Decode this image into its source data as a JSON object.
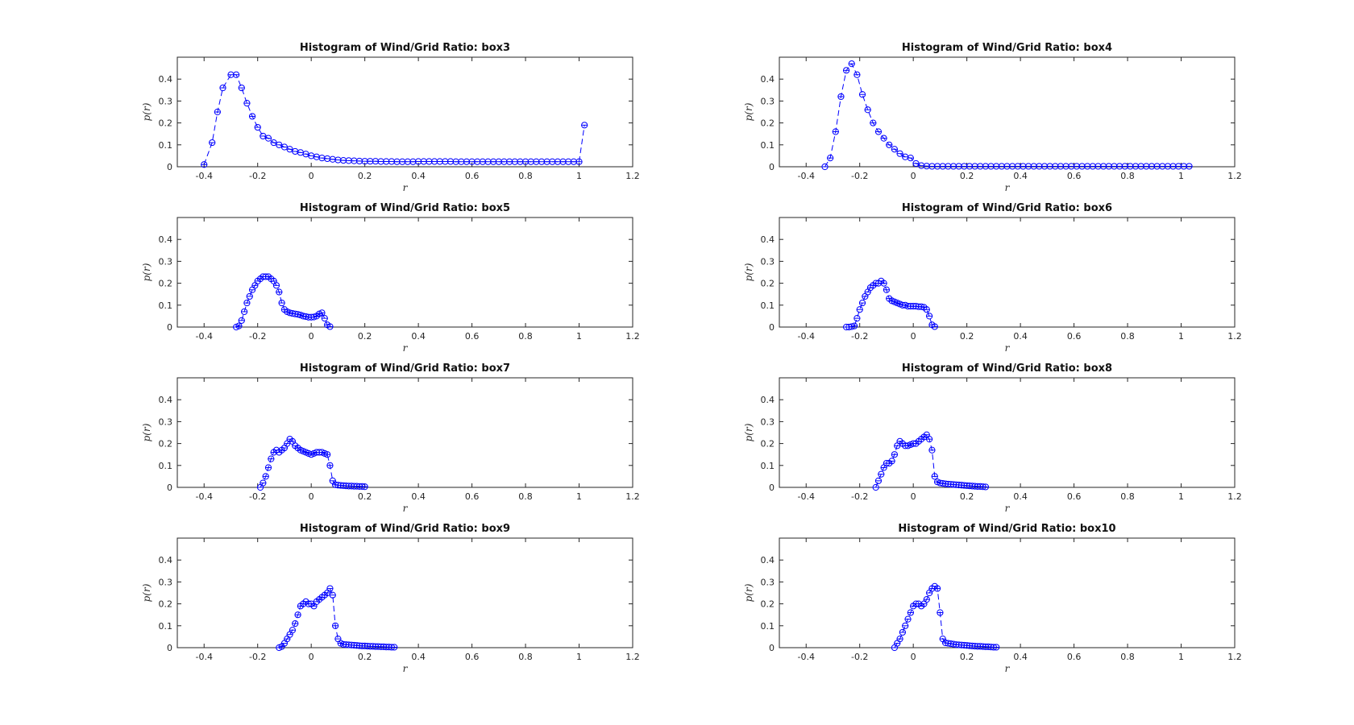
{
  "chart_data": [
    {
      "type": "line",
      "title": "Histogram of Wind/Grid Ratio: box3",
      "xlabel": "r",
      "ylabel": "p(r)",
      "xlim": [
        -0.5,
        1.2
      ],
      "ylim": [
        0,
        0.5
      ],
      "xticks": [
        "-0.4",
        "-0.2",
        "0",
        "0.2",
        "0.4",
        "0.6",
        "0.8",
        "1",
        "1.2"
      ],
      "yticks": [
        "0",
        "0.1",
        "0.2",
        "0.3",
        "0.4"
      ],
      "color": "#0000ff",
      "marker": "circle",
      "grid": false,
      "legend": "none",
      "series": [
        {
          "x": [
            -0.4,
            -0.37,
            -0.35,
            -0.33,
            -0.3,
            -0.28,
            -0.26,
            -0.24,
            -0.22,
            -0.2,
            -0.18,
            -0.16,
            -0.14,
            -0.12,
            -0.1,
            -0.08,
            -0.06,
            -0.04,
            -0.02,
            0.0,
            0.02,
            0.04,
            0.06,
            0.08,
            0.1,
            0.12,
            0.14,
            0.16,
            0.18,
            0.2,
            0.22,
            0.24,
            0.26,
            0.28,
            0.3,
            0.32,
            0.34,
            0.36,
            0.38,
            0.4,
            0.42,
            0.44,
            0.46,
            0.48,
            0.5,
            0.52,
            0.54,
            0.56,
            0.58,
            0.6,
            0.62,
            0.64,
            0.66,
            0.68,
            0.7,
            0.72,
            0.74,
            0.76,
            0.78,
            0.8,
            0.82,
            0.84,
            0.86,
            0.88,
            0.9,
            0.92,
            0.94,
            0.96,
            0.98,
            1.0,
            1.02
          ],
          "y": [
            0.01,
            0.11,
            0.25,
            0.36,
            0.42,
            0.42,
            0.36,
            0.29,
            0.23,
            0.18,
            0.14,
            0.13,
            0.11,
            0.1,
            0.09,
            0.08,
            0.07,
            0.065,
            0.058,
            0.05,
            0.045,
            0.04,
            0.037,
            0.034,
            0.031,
            0.029,
            0.028,
            0.027,
            0.026,
            0.025,
            0.025,
            0.025,
            0.024,
            0.024,
            0.024,
            0.023,
            0.023,
            0.023,
            0.023,
            0.024,
            0.024,
            0.024,
            0.024,
            0.024,
            0.024,
            0.024,
            0.023,
            0.023,
            0.023,
            0.023,
            0.023,
            0.023,
            0.023,
            0.023,
            0.023,
            0.023,
            0.023,
            0.023,
            0.023,
            0.023,
            0.023,
            0.023,
            0.023,
            0.023,
            0.023,
            0.023,
            0.023,
            0.023,
            0.023,
            0.023,
            0.19
          ]
        }
      ]
    },
    {
      "type": "line",
      "title": "Histogram of Wind/Grid Ratio: box4",
      "xlabel": "r",
      "ylabel": "p(r)",
      "xlim": [
        -0.5,
        1.2
      ],
      "ylim": [
        0,
        0.5
      ],
      "xticks": [
        "-0.4",
        "-0.2",
        "0",
        "0.2",
        "0.4",
        "0.6",
        "0.8",
        "1",
        "1.2"
      ],
      "yticks": [
        "0",
        "0.1",
        "0.2",
        "0.3",
        "0.4"
      ],
      "color": "#0000ff",
      "marker": "circle",
      "grid": false,
      "legend": "none",
      "series": [
        {
          "x": [
            -0.33,
            -0.31,
            -0.29,
            -0.27,
            -0.25,
            -0.23,
            -0.21,
            -0.19,
            -0.17,
            -0.15,
            -0.13,
            -0.11,
            -0.09,
            -0.07,
            -0.05,
            -0.03,
            -0.01,
            0.01,
            0.03,
            0.05,
            0.07,
            0.09,
            0.11,
            0.13,
            0.15,
            0.17,
            0.19,
            0.21,
            0.23,
            0.25,
            0.27,
            0.29,
            0.31,
            0.33,
            0.35,
            0.37,
            0.39,
            0.41,
            0.43,
            0.45,
            0.47,
            0.49,
            0.51,
            0.53,
            0.55,
            0.57,
            0.59,
            0.61,
            0.63,
            0.65,
            0.67,
            0.69,
            0.71,
            0.73,
            0.75,
            0.77,
            0.79,
            0.81,
            0.83,
            0.85,
            0.87,
            0.89,
            0.91,
            0.93,
            0.95,
            0.97,
            0.99,
            1.01,
            1.03
          ],
          "y": [
            0.0,
            0.04,
            0.16,
            0.32,
            0.44,
            0.47,
            0.42,
            0.33,
            0.26,
            0.2,
            0.16,
            0.13,
            0.1,
            0.08,
            0.06,
            0.045,
            0.04,
            0.015,
            0.005,
            0.003,
            0.002,
            0.002,
            0.002,
            0.002,
            0.002,
            0.002,
            0.002,
            0.002,
            0.002,
            0.002,
            0.002,
            0.002,
            0.002,
            0.002,
            0.002,
            0.002,
            0.002,
            0.002,
            0.002,
            0.002,
            0.002,
            0.002,
            0.002,
            0.002,
            0.002,
            0.002,
            0.002,
            0.002,
            0.002,
            0.002,
            0.002,
            0.002,
            0.002,
            0.002,
            0.002,
            0.002,
            0.002,
            0.002,
            0.002,
            0.002,
            0.002,
            0.002,
            0.002,
            0.002,
            0.002,
            0.002,
            0.002,
            0.002,
            0.002
          ]
        }
      ]
    },
    {
      "type": "line",
      "title": "Histogram of Wind/Grid Ratio: box5",
      "xlabel": "r",
      "ylabel": "p(r)",
      "xlim": [
        -0.5,
        1.2
      ],
      "ylim": [
        0,
        0.5
      ],
      "xticks": [
        "-0.4",
        "-0.2",
        "0",
        "0.2",
        "0.4",
        "0.6",
        "0.8",
        "1",
        "1.2"
      ],
      "yticks": [
        "0",
        "0.1",
        "0.2",
        "0.3",
        "0.4"
      ],
      "color": "#0000ff",
      "marker": "circle",
      "grid": false,
      "legend": "none",
      "series": [
        {
          "x": [
            -0.28,
            -0.27,
            -0.26,
            -0.25,
            -0.24,
            -0.23,
            -0.22,
            -0.21,
            -0.2,
            -0.19,
            -0.18,
            -0.17,
            -0.16,
            -0.15,
            -0.14,
            -0.13,
            -0.12,
            -0.11,
            -0.1,
            -0.09,
            -0.08,
            -0.07,
            -0.06,
            -0.05,
            -0.04,
            -0.03,
            -0.02,
            -0.01,
            0.0,
            0.01,
            0.02,
            0.03,
            0.04,
            0.05,
            0.06,
            0.07
          ],
          "y": [
            0.0,
            0.005,
            0.03,
            0.07,
            0.11,
            0.14,
            0.17,
            0.19,
            0.21,
            0.22,
            0.23,
            0.23,
            0.23,
            0.22,
            0.21,
            0.19,
            0.16,
            0.11,
            0.08,
            0.07,
            0.065,
            0.062,
            0.06,
            0.058,
            0.055,
            0.05,
            0.048,
            0.045,
            0.045,
            0.046,
            0.05,
            0.06,
            0.065,
            0.04,
            0.01,
            0.002
          ]
        }
      ]
    },
    {
      "type": "line",
      "title": "Histogram of Wind/Grid Ratio: box6",
      "xlabel": "r",
      "ylabel": "p(r)",
      "xlim": [
        -0.5,
        1.2
      ],
      "ylim": [
        0,
        0.5
      ],
      "xticks": [
        "-0.4",
        "-0.2",
        "0",
        "0.2",
        "0.4",
        "0.6",
        "0.8",
        "1",
        "1.2"
      ],
      "yticks": [
        "0",
        "0.1",
        "0.2",
        "0.3",
        "0.4"
      ],
      "color": "#0000ff",
      "marker": "circle",
      "grid": false,
      "legend": "none",
      "series": [
        {
          "x": [
            -0.25,
            -0.24,
            -0.23,
            -0.22,
            -0.21,
            -0.2,
            -0.19,
            -0.18,
            -0.17,
            -0.16,
            -0.15,
            -0.14,
            -0.13,
            -0.12,
            -0.11,
            -0.1,
            -0.09,
            -0.08,
            -0.07,
            -0.06,
            -0.05,
            -0.04,
            -0.03,
            -0.02,
            -0.01,
            0.0,
            0.01,
            0.02,
            0.03,
            0.04,
            0.05,
            0.06,
            0.07,
            0.08
          ],
          "y": [
            0.0,
            0.0,
            0.002,
            0.005,
            0.04,
            0.08,
            0.11,
            0.14,
            0.16,
            0.18,
            0.19,
            0.2,
            0.2,
            0.21,
            0.2,
            0.17,
            0.13,
            0.12,
            0.115,
            0.11,
            0.105,
            0.1,
            0.1,
            0.095,
            0.095,
            0.095,
            0.095,
            0.093,
            0.093,
            0.09,
            0.08,
            0.05,
            0.01,
            0.002
          ]
        }
      ]
    },
    {
      "type": "line",
      "title": "Histogram of Wind/Grid Ratio: box7",
      "xlabel": "r",
      "ylabel": "p(r)",
      "xlim": [
        -0.5,
        1.2
      ],
      "ylim": [
        0,
        0.5
      ],
      "xticks": [
        "-0.4",
        "-0.2",
        "0",
        "0.2",
        "0.4",
        "0.6",
        "0.8",
        "1",
        "1.2"
      ],
      "yticks": [
        "0",
        "0.1",
        "0.2",
        "0.3",
        "0.4"
      ],
      "color": "#0000ff",
      "marker": "circle",
      "grid": false,
      "legend": "none",
      "series": [
        {
          "x": [
            -0.19,
            -0.18,
            -0.17,
            -0.16,
            -0.15,
            -0.14,
            -0.13,
            -0.12,
            -0.11,
            -0.1,
            -0.09,
            -0.08,
            -0.07,
            -0.06,
            -0.05,
            -0.04,
            -0.03,
            -0.02,
            -0.01,
            0.0,
            0.01,
            0.02,
            0.03,
            0.04,
            0.05,
            0.06,
            0.07,
            0.08,
            0.09,
            0.1,
            0.11,
            0.12,
            0.13,
            0.14,
            0.15,
            0.16,
            0.17,
            0.18,
            0.19,
            0.2
          ],
          "y": [
            0.0,
            0.02,
            0.05,
            0.09,
            0.13,
            0.16,
            0.17,
            0.16,
            0.17,
            0.18,
            0.2,
            0.22,
            0.21,
            0.19,
            0.18,
            0.17,
            0.165,
            0.16,
            0.155,
            0.15,
            0.155,
            0.16,
            0.16,
            0.16,
            0.155,
            0.15,
            0.1,
            0.03,
            0.012,
            0.01,
            0.009,
            0.008,
            0.007,
            0.006,
            0.006,
            0.005,
            0.005,
            0.004,
            0.004,
            0.003
          ]
        }
      ]
    },
    {
      "type": "line",
      "title": "Histogram of Wind/Grid Ratio: box8",
      "xlabel": "r",
      "ylabel": "p(r)",
      "xlim": [
        -0.5,
        1.2
      ],
      "ylim": [
        0,
        0.5
      ],
      "xticks": [
        "-0.4",
        "-0.2",
        "0",
        "0.2",
        "0.4",
        "0.6",
        "0.8",
        "1",
        "1.2"
      ],
      "yticks": [
        "0",
        "0.1",
        "0.2",
        "0.3",
        "0.4"
      ],
      "color": "#0000ff",
      "marker": "circle",
      "grid": false,
      "legend": "none",
      "series": [
        {
          "x": [
            -0.14,
            -0.13,
            -0.12,
            -0.11,
            -0.1,
            -0.09,
            -0.08,
            -0.07,
            -0.06,
            -0.05,
            -0.04,
            -0.03,
            -0.02,
            -0.01,
            0.0,
            0.01,
            0.02,
            0.03,
            0.04,
            0.05,
            0.06,
            0.07,
            0.08,
            0.09,
            0.1,
            0.11,
            0.12,
            0.13,
            0.14,
            0.15,
            0.16,
            0.17,
            0.18,
            0.19,
            0.2,
            0.21,
            0.22,
            0.23,
            0.24,
            0.25,
            0.26,
            0.27
          ],
          "y": [
            0.0,
            0.03,
            0.06,
            0.09,
            0.11,
            0.11,
            0.12,
            0.15,
            0.19,
            0.21,
            0.2,
            0.19,
            0.19,
            0.195,
            0.2,
            0.2,
            0.21,
            0.22,
            0.23,
            0.24,
            0.22,
            0.17,
            0.05,
            0.025,
            0.02,
            0.018,
            0.016,
            0.015,
            0.014,
            0.013,
            0.012,
            0.011,
            0.01,
            0.009,
            0.008,
            0.007,
            0.006,
            0.005,
            0.004,
            0.004,
            0.003,
            0.002
          ]
        }
      ]
    },
    {
      "type": "line",
      "title": "Histogram of Wind/Grid Ratio: box9",
      "xlabel": "r",
      "ylabel": "p(r)",
      "xlim": [
        -0.5,
        1.2
      ],
      "ylim": [
        0,
        0.5
      ],
      "xticks": [
        "-0.4",
        "-0.2",
        "0",
        "0.2",
        "0.4",
        "0.6",
        "0.8",
        "1",
        "1.2"
      ],
      "yticks": [
        "0",
        "0.1",
        "0.2",
        "0.3",
        "0.4"
      ],
      "color": "#0000ff",
      "marker": "circle",
      "grid": false,
      "legend": "none",
      "series": [
        {
          "x": [
            -0.12,
            -0.11,
            -0.1,
            -0.09,
            -0.08,
            -0.07,
            -0.06,
            -0.05,
            -0.04,
            -0.03,
            -0.02,
            -0.01,
            0.0,
            0.01,
            0.02,
            0.03,
            0.04,
            0.05,
            0.06,
            0.07,
            0.08,
            0.09,
            0.1,
            0.11,
            0.12,
            0.13,
            0.14,
            0.15,
            0.16,
            0.17,
            0.18,
            0.19,
            0.2,
            0.21,
            0.22,
            0.23,
            0.24,
            0.25,
            0.26,
            0.27,
            0.28,
            0.29,
            0.3,
            0.31
          ],
          "y": [
            0.0,
            0.005,
            0.02,
            0.04,
            0.06,
            0.08,
            0.11,
            0.15,
            0.19,
            0.2,
            0.21,
            0.2,
            0.2,
            0.19,
            0.21,
            0.22,
            0.23,
            0.24,
            0.25,
            0.27,
            0.24,
            0.1,
            0.04,
            0.02,
            0.015,
            0.014,
            0.013,
            0.012,
            0.011,
            0.01,
            0.009,
            0.008,
            0.008,
            0.007,
            0.006,
            0.006,
            0.005,
            0.005,
            0.004,
            0.004,
            0.003,
            0.003,
            0.002,
            0.002
          ]
        }
      ]
    },
    {
      "type": "line",
      "title": "Histogram of Wind/Grid Ratio: box10",
      "xlabel": "r",
      "ylabel": "p(r)",
      "xlim": [
        -0.5,
        1.2
      ],
      "ylim": [
        0,
        0.5
      ],
      "xticks": [
        "-0.4",
        "-0.2",
        "0",
        "0.2",
        "0.4",
        "0.6",
        "0.8",
        "1",
        "1.2"
      ],
      "yticks": [
        "0",
        "0.1",
        "0.2",
        "0.3",
        "0.4"
      ],
      "color": "#0000ff",
      "marker": "circle",
      "grid": false,
      "legend": "none",
      "series": [
        {
          "x": [
            -0.07,
            -0.06,
            -0.05,
            -0.04,
            -0.03,
            -0.02,
            -0.01,
            0.0,
            0.01,
            0.02,
            0.03,
            0.04,
            0.05,
            0.06,
            0.07,
            0.08,
            0.09,
            0.1,
            0.11,
            0.12,
            0.13,
            0.14,
            0.15,
            0.16,
            0.17,
            0.18,
            0.19,
            0.2,
            0.21,
            0.22,
            0.23,
            0.24,
            0.25,
            0.26,
            0.27,
            0.28,
            0.29,
            0.3,
            0.31
          ],
          "y": [
            0.0,
            0.02,
            0.04,
            0.07,
            0.1,
            0.13,
            0.16,
            0.19,
            0.2,
            0.2,
            0.19,
            0.2,
            0.22,
            0.25,
            0.27,
            0.28,
            0.27,
            0.16,
            0.04,
            0.022,
            0.02,
            0.018,
            0.016,
            0.014,
            0.013,
            0.012,
            0.011,
            0.01,
            0.009,
            0.008,
            0.007,
            0.006,
            0.006,
            0.005,
            0.004,
            0.004,
            0.003,
            0.002,
            0.002
          ]
        }
      ]
    }
  ]
}
